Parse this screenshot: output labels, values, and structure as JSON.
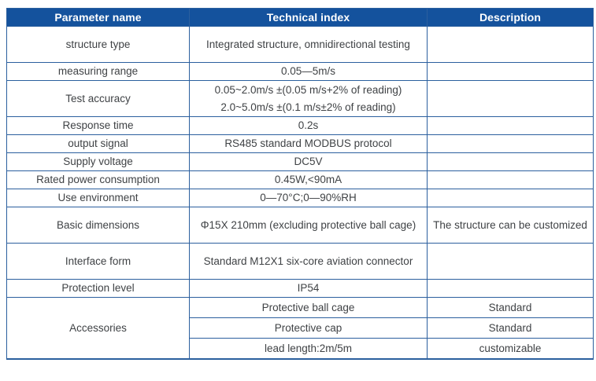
{
  "colors": {
    "header_bg": "#14529d",
    "header_text": "#ffffff",
    "border": "#2b5f9e",
    "body_text": "#3f4245"
  },
  "table": {
    "headers": [
      "Parameter name",
      "Technical index",
      "Description"
    ],
    "rows": [
      {
        "p": "structure type",
        "t": "Integrated structure, omnidirectional testing",
        "d": ""
      },
      {
        "p": "measuring range",
        "t": "0.05—5m/s",
        "d": ""
      },
      {
        "p": "Test accuracy",
        "t": "0.05~2.0m/s ±(0.05 m/s+2% of reading)\n2.0~5.0m/s ±(0.1 m/s±2% of reading)",
        "d": ""
      },
      {
        "p": "Response time",
        "t": "0.2s",
        "d": ""
      },
      {
        "p": "output signal",
        "t": "RS485 standard MODBUS protocol",
        "d": ""
      },
      {
        "p": "Supply voltage",
        "t": "DC5V",
        "d": ""
      },
      {
        "p": "Rated power consumption",
        "t": "0.45W,<90mA",
        "d": ""
      },
      {
        "p": "Use environment",
        "t": "0—70°C;0—90%RH",
        "d": ""
      },
      {
        "p": "Basic dimensions",
        "t": "Φ15X 210mm (excluding protective ball cage)",
        "d": "The structure can be customized"
      },
      {
        "p": "Interface form",
        "t": "Standard M12X1 six-core aviation connector",
        "d": ""
      },
      {
        "p": "Protection level",
        "t": "IP54",
        "d": ""
      },
      {
        "p": "Accessories",
        "t": "Protective ball cage",
        "d": "Standard"
      },
      {
        "t": "Protective cap",
        "d": "Standard"
      },
      {
        "t": "lead length:2m/5m",
        "d": "customizable"
      }
    ]
  }
}
